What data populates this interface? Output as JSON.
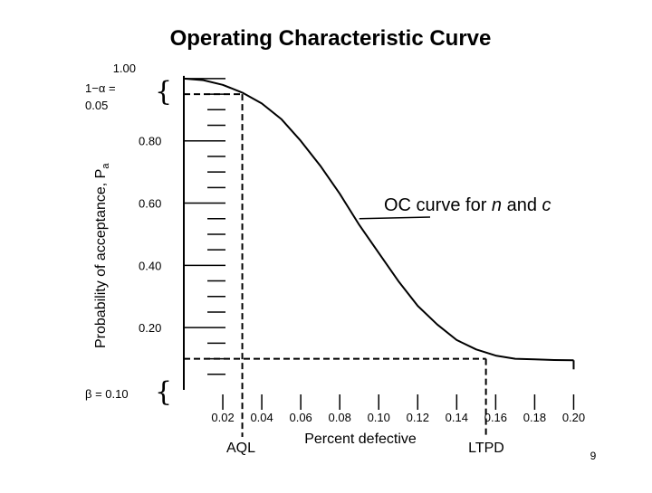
{
  "slide": {
    "page_number": "9"
  },
  "chart_data": {
    "type": "line",
    "title": "Operating Characteristic Curve",
    "xlabel": "Percent defective",
    "ylabel": "Probability of acceptance, P",
    "ylabel_subscript": "a",
    "xlim": [
      0.0,
      0.21
    ],
    "ylim": [
      0.0,
      1.02
    ],
    "x_ticks": [
      {
        "value": 0.02,
        "label": "0.02"
      },
      {
        "value": 0.04,
        "label": "0.04"
      },
      {
        "value": 0.06,
        "label": "0.06"
      },
      {
        "value": 0.08,
        "label": "0.08"
      },
      {
        "value": 0.1,
        "label": "0.10"
      },
      {
        "value": 0.12,
        "label": "0.12"
      },
      {
        "value": 0.14,
        "label": "0.14"
      },
      {
        "value": 0.16,
        "label": "0.16"
      },
      {
        "value": 0.18,
        "label": "0.18"
      },
      {
        "value": 0.2,
        "label": "0.20"
      }
    ],
    "y_ticks": [
      {
        "value": 1.0,
        "label": "1.00"
      },
      {
        "value": 0.8,
        "label": "0.80"
      },
      {
        "value": 0.6,
        "label": "0.60"
      },
      {
        "value": 0.4,
        "label": "0.40"
      },
      {
        "value": 0.2,
        "label": "0.20"
      }
    ],
    "minor_y_ticks": [
      0.95,
      0.9,
      0.85,
      0.75,
      0.7,
      0.65,
      0.55,
      0.5,
      0.45,
      0.35,
      0.3,
      0.25,
      0.15,
      0.1,
      0.05
    ],
    "series": [
      {
        "name": "OC curve for n and c",
        "x": [
          0.0,
          0.01,
          0.02,
          0.03,
          0.04,
          0.05,
          0.06,
          0.07,
          0.08,
          0.09,
          0.1,
          0.11,
          0.12,
          0.13,
          0.14,
          0.15,
          0.16,
          0.17,
          0.18,
          0.19,
          0.2
        ],
        "y": [
          1.0,
          0.995,
          0.98,
          0.955,
          0.92,
          0.87,
          0.8,
          0.72,
          0.63,
          0.53,
          0.44,
          0.35,
          0.27,
          0.21,
          0.16,
          0.13,
          0.11,
          0.1,
          0.098,
          0.096,
          0.095
        ]
      }
    ],
    "reference_lines": {
      "aql": {
        "x": 0.03,
        "y": 0.95,
        "label": "AQL"
      },
      "ltpd": {
        "x": 0.155,
        "y": 0.1,
        "label": "LTPD"
      }
    },
    "annotations": {
      "alpha_label": "1−α =",
      "alpha_value": "0.05",
      "beta_label": "β = 0.10",
      "brace": "{",
      "curve_label_text": "OC curve for ",
      "curve_label_n": "n",
      "curve_label_and": " and ",
      "curve_label_c": "c",
      "curve_label_x": 0.09,
      "curve_label_y": 0.55
    }
  }
}
